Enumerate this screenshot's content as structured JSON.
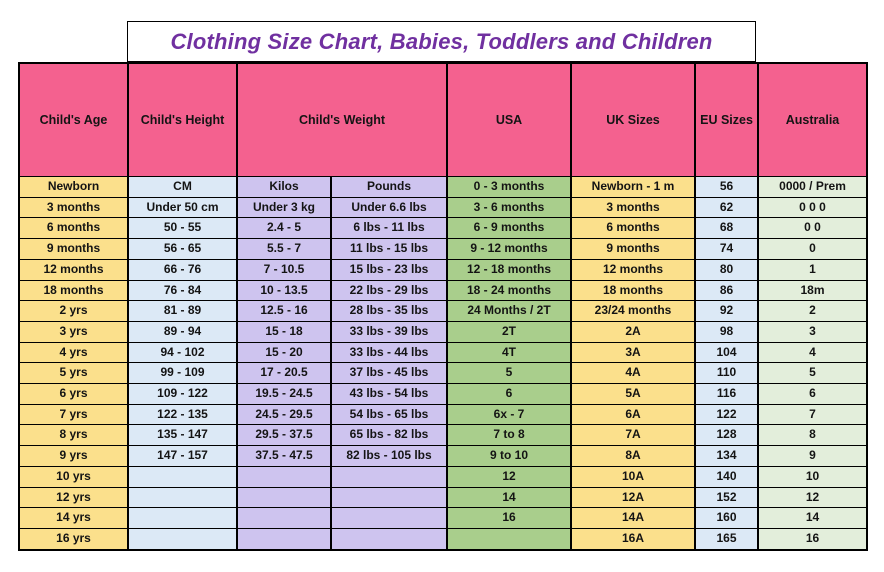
{
  "styles": {
    "header_pink": "#F4618F",
    "gold": "#FBE08C",
    "light_blue": "#DCE9F6",
    "lavender": "#CEC4EF",
    "green": "#A9CE8C",
    "pale_green": "#E3EEDB",
    "title_purple": "#7030A0",
    "border_black": "#000000"
  },
  "chart_data": {
    "type": "table",
    "title": "Clothing Size Chart, Babies, Toddlers and Children",
    "header_groups": [
      {
        "label": "Child's Age",
        "colspan": 1
      },
      {
        "label": "Child's Height",
        "colspan": 1
      },
      {
        "label": "Child's Weight",
        "colspan": 2
      },
      {
        "label": "USA",
        "colspan": 1
      },
      {
        "label": "UK Sizes",
        "colspan": 1
      },
      {
        "label": "EU Sizes",
        "colspan": 1
      },
      {
        "label": "Australia",
        "colspan": 1
      }
    ],
    "columns": [
      "age",
      "height_cm",
      "weight_kilos",
      "weight_pounds",
      "usa",
      "uk_sizes",
      "eu_sizes",
      "australia"
    ],
    "column_colors": [
      "gold",
      "light_blue",
      "lavender",
      "lavender",
      "green",
      "gold",
      "light_blue",
      "pale_green"
    ],
    "rows": [
      [
        "Newborn",
        "CM",
        "Kilos",
        "Pounds",
        "0 - 3 months",
        "Newborn - 1 m",
        "56",
        "0000 / Prem"
      ],
      [
        "3 months",
        "Under 50 cm",
        "Under 3 kg",
        "Under 6.6 lbs",
        "3 - 6 months",
        "3 months",
        "62",
        "0 0 0"
      ],
      [
        "6 months",
        "50 - 55",
        "2.4 - 5",
        "6 lbs - 11 lbs",
        "6 - 9 months",
        "6 months",
        "68",
        "0 0"
      ],
      [
        "9 months",
        "56 - 65",
        "5.5 - 7",
        "11 lbs - 15 lbs",
        "9 - 12 months",
        "9 months",
        "74",
        "0"
      ],
      [
        "12 months",
        "66 - 76",
        "7 - 10.5",
        "15 lbs - 23 lbs",
        "12 - 18 months",
        "12 months",
        "80",
        "1"
      ],
      [
        "18 months",
        "76 - 84",
        "10 - 13.5",
        "22 lbs - 29 lbs",
        "18 - 24 months",
        "18 months",
        "86",
        "18m"
      ],
      [
        "2 yrs",
        "81 - 89",
        "12.5 - 16",
        "28 lbs - 35 lbs",
        "24 Months / 2T",
        "23/24 months",
        "92",
        "2"
      ],
      [
        "3 yrs",
        "89 - 94",
        "15 - 18",
        "33 lbs - 39 lbs",
        "2T",
        "2A",
        "98",
        "3"
      ],
      [
        "4 yrs",
        "94 - 102",
        "15 - 20",
        "33 lbs - 44 lbs",
        "4T",
        "3A",
        "104",
        "4"
      ],
      [
        "5 yrs",
        "99 - 109",
        "17 - 20.5",
        "37 lbs - 45 lbs",
        "5",
        "4A",
        "110",
        "5"
      ],
      [
        "6 yrs",
        "109 - 122",
        "19.5 - 24.5",
        "43 lbs - 54 lbs",
        "6",
        "5A",
        "116",
        "6"
      ],
      [
        "7 yrs",
        "122 - 135",
        "24.5 - 29.5",
        "54 lbs - 65 lbs",
        "6x - 7",
        "6A",
        "122",
        "7"
      ],
      [
        "8 yrs",
        "135 - 147",
        "29.5 - 37.5",
        "65 lbs - 82 lbs",
        "7 to 8",
        "7A",
        "128",
        "8"
      ],
      [
        "9 yrs",
        "147 - 157",
        "37.5 - 47.5",
        "82 lbs - 105 lbs",
        "9 to 10",
        "8A",
        "134",
        "9"
      ],
      [
        "10 yrs",
        "",
        "",
        "",
        "12",
        "10A",
        "140",
        "10"
      ],
      [
        "12 yrs",
        "",
        "",
        "",
        "14",
        "12A",
        "152",
        "12"
      ],
      [
        "14 yrs",
        "",
        "",
        "",
        "16",
        "14A",
        "160",
        "14"
      ],
      [
        "16 yrs",
        "",
        "",
        "",
        "",
        "16A",
        "165",
        "16"
      ]
    ]
  }
}
